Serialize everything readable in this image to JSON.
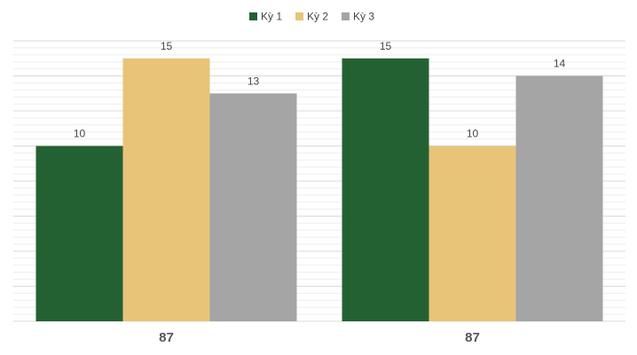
{
  "chart_data": {
    "type": "bar",
    "categories": [
      "87",
      "87"
    ],
    "series": [
      {
        "name": "Kỳ 1",
        "color": "#246132",
        "values": [
          10,
          15
        ]
      },
      {
        "name": "Kỳ 2",
        "color": "#e8c479",
        "values": [
          15,
          10
        ]
      },
      {
        "name": "Kỳ 3",
        "color": "#a5a5a5",
        "values": [
          13,
          14
        ]
      }
    ],
    "ylim": [
      0,
      16
    ],
    "yticks": [
      0,
      2,
      4,
      6,
      8,
      10,
      12,
      14,
      16
    ],
    "grid": true,
    "legend": "top"
  }
}
